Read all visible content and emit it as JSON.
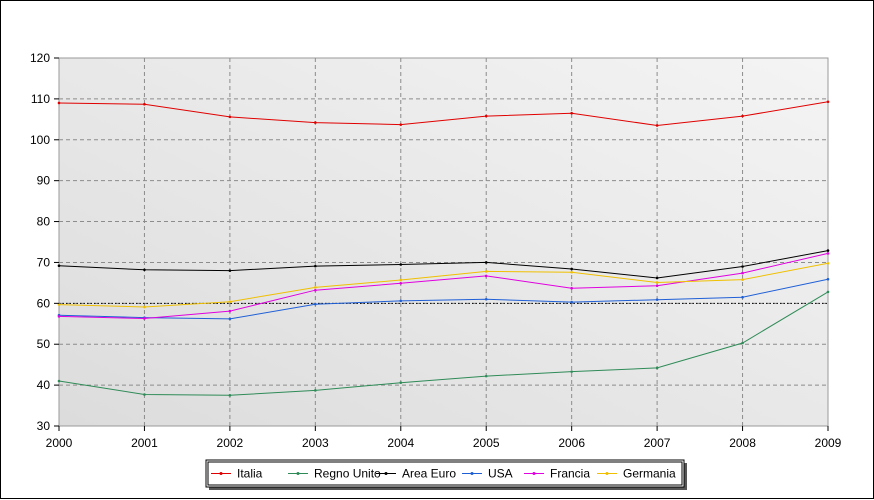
{
  "chart_data": {
    "type": "line",
    "title": "",
    "xlabel": "",
    "ylabel": "",
    "x": [
      "2000",
      "2001",
      "2002",
      "2003",
      "2004",
      "2005",
      "2006",
      "2007",
      "2008",
      "2009"
    ],
    "ylim": [
      30,
      120
    ],
    "yticks": [
      "30",
      "40",
      "50",
      "60",
      "70",
      "80",
      "90",
      "100",
      "110",
      "120"
    ],
    "grid": true,
    "reference_line": {
      "y": 60,
      "style": "dotted",
      "color": "#000000"
    },
    "legend": "bottom",
    "series": [
      {
        "name": "Italia",
        "color": "#e00000",
        "values": [
          109.0,
          108.7,
          105.6,
          104.2,
          103.7,
          105.8,
          106.5,
          103.5,
          105.8,
          109.3
        ]
      },
      {
        "name": "Regno Unito",
        "color": "#2e8b57",
        "values": [
          41.0,
          37.7,
          37.5,
          38.7,
          40.6,
          42.2,
          43.3,
          44.2,
          50.3,
          62.8
        ]
      },
      {
        "name": "Area Euro",
        "color": "#000000",
        "values": [
          69.2,
          68.2,
          68.0,
          69.1,
          69.5,
          70.0,
          68.4,
          66.2,
          69.0,
          72.9
        ]
      },
      {
        "name": "USA",
        "color": "#1f5fd6",
        "values": [
          57.1,
          56.5,
          56.2,
          59.8,
          60.6,
          61.0,
          60.3,
          60.9,
          61.5,
          65.9
        ]
      },
      {
        "name": "Francia",
        "color": "#e000e0",
        "values": [
          56.8,
          56.3,
          58.1,
          63.2,
          64.9,
          66.7,
          63.7,
          64.3,
          67.4,
          72.2
        ]
      },
      {
        "name": "Germania",
        "color": "#f0c000",
        "values": [
          59.7,
          59.1,
          60.4,
          63.9,
          65.7,
          67.8,
          67.6,
          65.1,
          65.8,
          69.8
        ]
      }
    ]
  }
}
